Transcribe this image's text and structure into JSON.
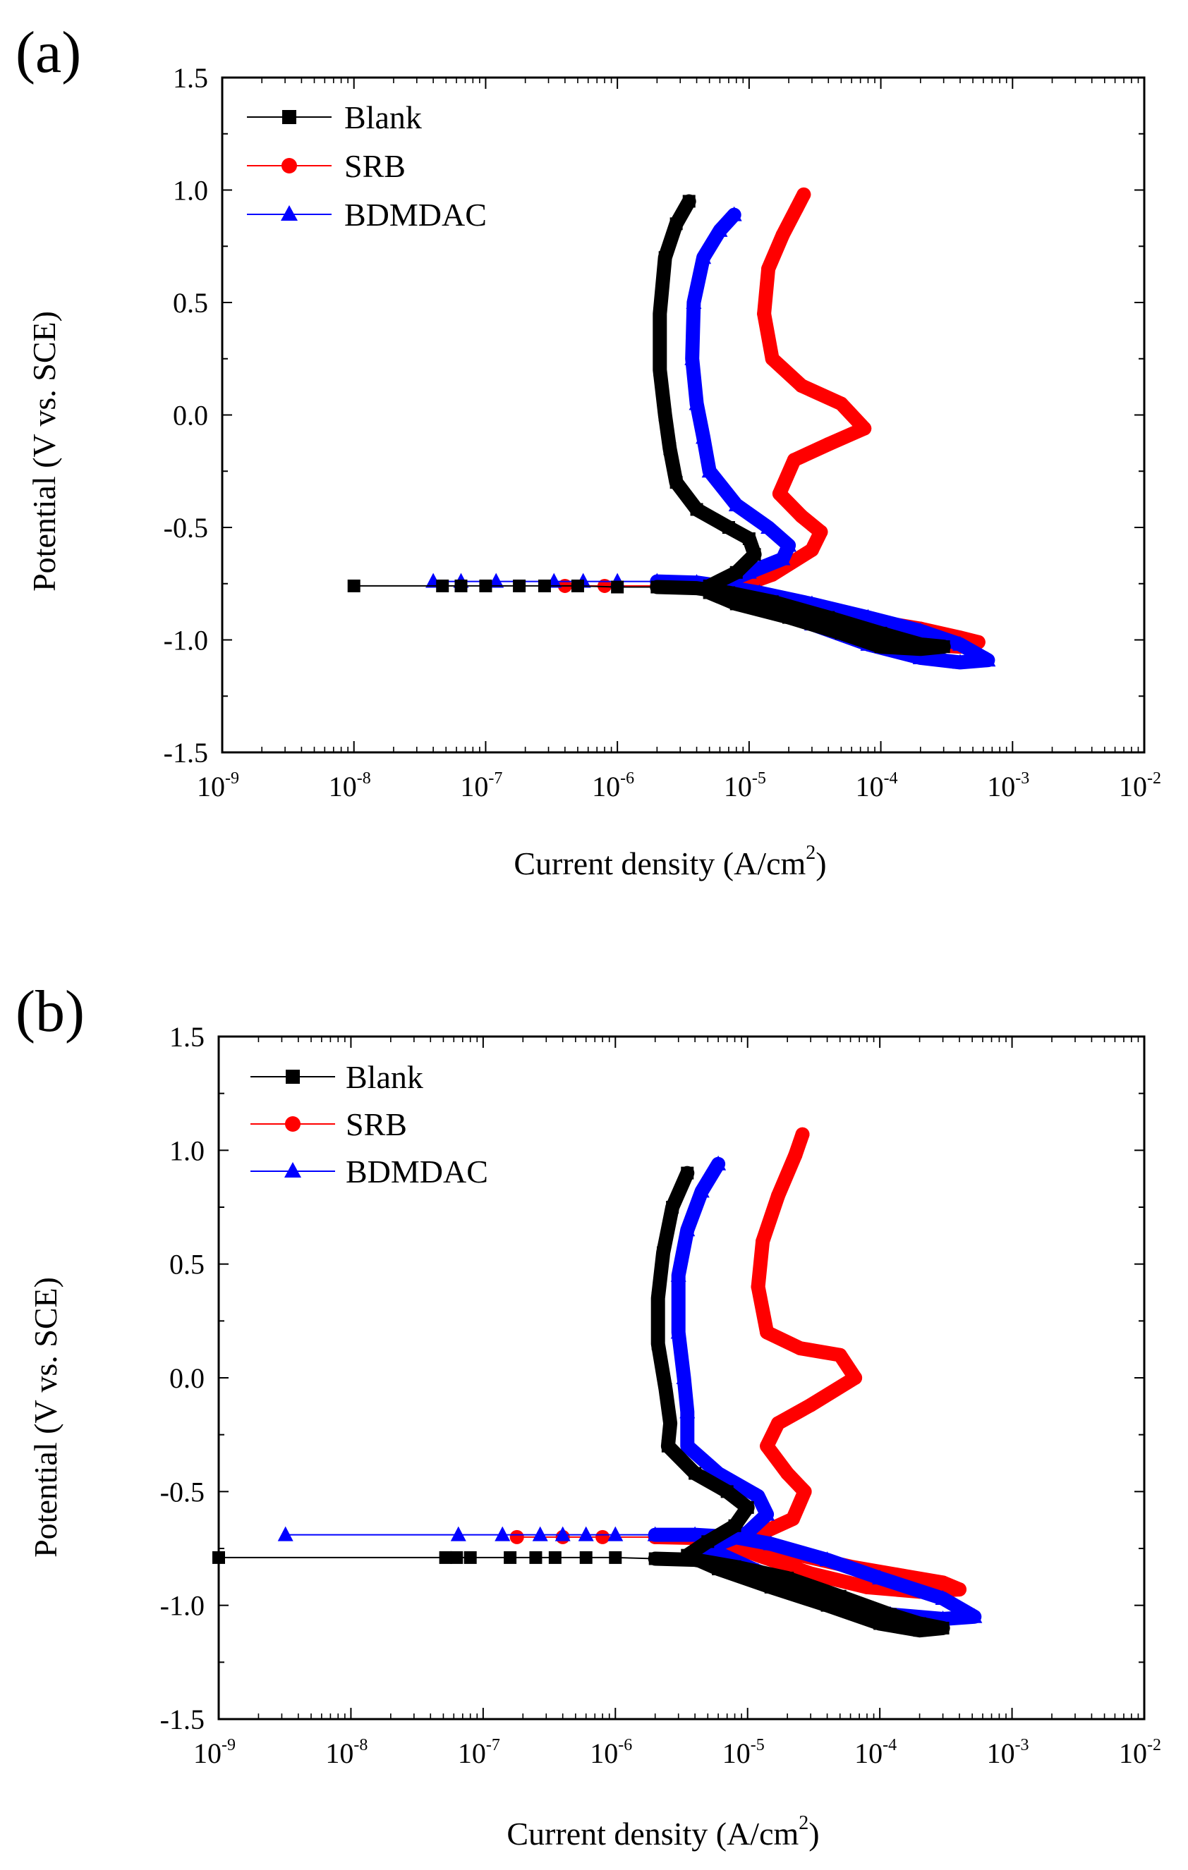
{
  "figure": {
    "panels": [
      "(a)",
      "(b)"
    ]
  },
  "colors": {
    "Blank": "#000000",
    "SRB": "#ff0000",
    "BDMDAC": "#0000ff"
  },
  "chart_data": [
    {
      "panel": "(a)",
      "type": "line",
      "xlabel": "Current density (A/cm",
      "xlabel_sup": "2",
      "xlabel_close": ")",
      "ylabel": "Potential (V vs. SCE)",
      "xscale": "log",
      "xlim": [
        1e-09,
        0.01
      ],
      "ylim": [
        -1.5,
        1.5
      ],
      "x_ticks": [
        {
          "exp": -9,
          "base": "10",
          "sup": "-9"
        },
        {
          "exp": -8,
          "base": "10",
          "sup": "-8"
        },
        {
          "exp": -7,
          "base": "10",
          "sup": "-7"
        },
        {
          "exp": -6,
          "base": "10",
          "sup": "-6"
        },
        {
          "exp": -5,
          "base": "10",
          "sup": "-5"
        },
        {
          "exp": -4,
          "base": "10",
          "sup": "-4"
        },
        {
          "exp": -3,
          "base": "10",
          "sup": "-3"
        },
        {
          "exp": -2,
          "base": "10",
          "sup": "-2"
        }
      ],
      "y_ticks": [
        {
          "v": 1.5,
          "label": "1.5"
        },
        {
          "v": 1.0,
          "label": "1.0"
        },
        {
          "v": 0.5,
          "label": "0.5"
        },
        {
          "v": 0.0,
          "label": "0.0"
        },
        {
          "v": -0.5,
          "label": "-0.5"
        },
        {
          "v": -1.0,
          "label": "-1.0"
        },
        {
          "v": -1.5,
          "label": "-1.5"
        }
      ],
      "legend_position": "top-left",
      "series": [
        {
          "name": "Blank",
          "marker": "square",
          "points": [
            [
              1e-08,
              -0.76
            ],
            [
              4.7e-08,
              -0.76
            ],
            [
              6.5e-08,
              -0.76
            ],
            [
              1e-07,
              -0.76
            ],
            [
              1.8e-07,
              -0.76
            ],
            [
              2.8e-07,
              -0.76
            ],
            [
              5e-07,
              -0.76
            ],
            [
              1e-06,
              -0.765
            ],
            [
              2e-06,
              -0.765
            ],
            [
              4e-06,
              -0.77
            ],
            [
              7e-06,
              -0.79
            ],
            [
              1.5e-05,
              -0.83
            ],
            [
              4e-05,
              -0.9
            ],
            [
              0.0001,
              -0.97
            ],
            [
              0.0002,
              -1.02
            ],
            [
              0.0003,
              -1.03
            ],
            [
              0.0002,
              -1.04
            ],
            [
              0.0001,
              -1.03
            ],
            [
              5e-05,
              -0.97
            ],
            [
              2e-05,
              -0.9
            ],
            [
              8e-06,
              -0.84
            ],
            [
              5e-06,
              -0.79
            ],
            [
              5e-06,
              -0.76
            ],
            [
              8e-06,
              -0.7
            ],
            [
              1.1e-05,
              -0.62
            ],
            [
              1e-05,
              -0.55
            ],
            [
              7e-06,
              -0.5
            ],
            [
              4e-06,
              -0.42
            ],
            [
              2.8e-06,
              -0.3
            ],
            [
              2.5e-06,
              -0.15
            ],
            [
              2.3e-06,
              0.0
            ],
            [
              2.1e-06,
              0.2
            ],
            [
              2.1e-06,
              0.45
            ],
            [
              2.3e-06,
              0.7
            ],
            [
              2.8e-06,
              0.85
            ],
            [
              3.5e-06,
              0.95
            ]
          ]
        },
        {
          "name": "SRB",
          "marker": "circle",
          "points": [
            [
              4e-07,
              -0.76
            ],
            [
              8e-07,
              -0.76
            ],
            [
              2e-06,
              -0.76
            ],
            [
              5e-06,
              -0.76
            ],
            [
              8e-06,
              -0.8
            ],
            [
              2e-05,
              -0.84
            ],
            [
              6e-05,
              -0.9
            ],
            [
              0.0002,
              -0.95
            ],
            [
              0.0004,
              -0.99
            ],
            [
              0.00055,
              -1.01
            ],
            [
              0.0004,
              -1.03
            ],
            [
              0.0002,
              -1.02
            ],
            [
              8e-05,
              -0.97
            ],
            [
              3e-05,
              -0.9
            ],
            [
              1.2e-05,
              -0.82
            ],
            [
              7e-06,
              -0.78
            ],
            [
              1.5e-05,
              -0.71
            ],
            [
              3e-05,
              -0.6
            ],
            [
              3.5e-05,
              -0.52
            ],
            [
              2.5e-05,
              -0.45
            ],
            [
              1.7e-05,
              -0.35
            ],
            [
              2.2e-05,
              -0.2
            ],
            [
              4e-05,
              -0.13
            ],
            [
              7.5e-05,
              -0.06
            ],
            [
              5e-05,
              0.05
            ],
            [
              2.5e-05,
              0.13
            ],
            [
              1.5e-05,
              0.25
            ],
            [
              1.3e-05,
              0.45
            ],
            [
              1.4e-05,
              0.65
            ],
            [
              1.8e-05,
              0.8
            ],
            [
              2.3e-05,
              0.92
            ],
            [
              2.6e-05,
              0.98
            ]
          ]
        },
        {
          "name": "BDMDAC",
          "marker": "triangle",
          "points": [
            [
              4e-08,
              -0.74
            ],
            [
              6.5e-08,
              -0.74
            ],
            [
              1.2e-07,
              -0.74
            ],
            [
              3.3e-07,
              -0.74
            ],
            [
              5.5e-07,
              -0.74
            ],
            [
              1e-06,
              -0.74
            ],
            [
              2e-06,
              -0.74
            ],
            [
              4e-06,
              -0.745
            ],
            [
              6e-06,
              -0.76
            ],
            [
              1.2e-05,
              -0.79
            ],
            [
              3e-05,
              -0.84
            ],
            [
              8e-05,
              -0.9
            ],
            [
              0.0002,
              -0.96
            ],
            [
              0.0004,
              -1.02
            ],
            [
              0.00065,
              -1.09
            ],
            [
              0.0004,
              -1.1
            ],
            [
              0.0002,
              -1.08
            ],
            [
              8e-05,
              -1.02
            ],
            [
              3e-05,
              -0.93
            ],
            [
              1e-05,
              -0.84
            ],
            [
              5e-06,
              -0.77
            ],
            [
              1e-05,
              -0.7
            ],
            [
              1.8e-05,
              -0.64
            ],
            [
              2e-05,
              -0.58
            ],
            [
              1.4e-05,
              -0.5
            ],
            [
              8e-06,
              -0.4
            ],
            [
              5e-06,
              -0.25
            ],
            [
              4.5e-06,
              -0.1
            ],
            [
              4e-06,
              0.05
            ],
            [
              3.7e-06,
              0.25
            ],
            [
              3.8e-06,
              0.5
            ],
            [
              4.5e-06,
              0.7
            ],
            [
              6e-06,
              0.82
            ],
            [
              7.7e-06,
              0.89
            ]
          ]
        }
      ]
    },
    {
      "panel": "(b)",
      "type": "line",
      "xlabel": "Current density (A/cm",
      "xlabel_sup": "2",
      "xlabel_close": ")",
      "ylabel": "Potential (V vs. SCE)",
      "xscale": "log",
      "xlim": [
        1e-09,
        0.01
      ],
      "ylim": [
        -1.5,
        1.5
      ],
      "x_ticks": [
        {
          "exp": -9,
          "base": "10",
          "sup": "-9"
        },
        {
          "exp": -8,
          "base": "10",
          "sup": "-8"
        },
        {
          "exp": -7,
          "base": "10",
          "sup": "-7"
        },
        {
          "exp": -6,
          "base": "10",
          "sup": "-6"
        },
        {
          "exp": -5,
          "base": "10",
          "sup": "-5"
        },
        {
          "exp": -4,
          "base": "10",
          "sup": "-4"
        },
        {
          "exp": -3,
          "base": "10",
          "sup": "-3"
        },
        {
          "exp": -2,
          "base": "10",
          "sup": "-2"
        }
      ],
      "y_ticks": [
        {
          "v": 1.5,
          "label": "1.5"
        },
        {
          "v": 1.0,
          "label": "1.0"
        },
        {
          "v": 0.5,
          "label": "0.5"
        },
        {
          "v": 0.0,
          "label": "0.0"
        },
        {
          "v": -0.5,
          "label": "-0.5"
        },
        {
          "v": -1.0,
          "label": "-1.0"
        },
        {
          "v": -1.5,
          "label": "-1.5"
        }
      ],
      "legend_position": "top-left",
      "series": [
        {
          "name": "Blank",
          "marker": "square",
          "points": [
            [
              1e-09,
              -0.79
            ],
            [
              5.2e-08,
              -0.79
            ],
            [
              6.3e-08,
              -0.79
            ],
            [
              8e-08,
              -0.79
            ],
            [
              1.6e-07,
              -0.79
            ],
            [
              2.5e-07,
              -0.79
            ],
            [
              3.5e-07,
              -0.79
            ],
            [
              6e-07,
              -0.79
            ],
            [
              1e-06,
              -0.79
            ],
            [
              2e-06,
              -0.795
            ],
            [
              4e-06,
              -0.8
            ],
            [
              8e-06,
              -0.83
            ],
            [
              2e-05,
              -0.88
            ],
            [
              5e-05,
              -0.96
            ],
            [
              0.00012,
              -1.04
            ],
            [
              0.0002,
              -1.08
            ],
            [
              0.0003,
              -1.1
            ],
            [
              0.0002,
              -1.11
            ],
            [
              0.0001,
              -1.08
            ],
            [
              4e-05,
              -1.0
            ],
            [
              1.5e-05,
              -0.92
            ],
            [
              6e-06,
              -0.84
            ],
            [
              3.5e-06,
              -0.78
            ],
            [
              5e-06,
              -0.72
            ],
            [
              8e-06,
              -0.65
            ],
            [
              1e-05,
              -0.57
            ],
            [
              7e-06,
              -0.5
            ],
            [
              4e-06,
              -0.42
            ],
            [
              2.5e-06,
              -0.3
            ],
            [
              2.6e-06,
              -0.2
            ],
            [
              2.4e-06,
              -0.05
            ],
            [
              2.1e-06,
              0.15
            ],
            [
              2.1e-06,
              0.35
            ],
            [
              2.3e-06,
              0.55
            ],
            [
              2.7e-06,
              0.75
            ],
            [
              3.5e-06,
              0.9
            ]
          ]
        },
        {
          "name": "SRB",
          "marker": "circle",
          "points": [
            [
              1.8e-07,
              -0.7
            ],
            [
              4e-07,
              -0.7
            ],
            [
              8e-07,
              -0.7
            ],
            [
              2e-06,
              -0.7
            ],
            [
              5e-06,
              -0.705
            ],
            [
              1e-05,
              -0.73
            ],
            [
              2.5e-05,
              -0.78
            ],
            [
              6e-05,
              -0.83
            ],
            [
              0.00015,
              -0.87
            ],
            [
              0.0003,
              -0.9
            ],
            [
              0.0004,
              -0.93
            ],
            [
              0.0002,
              -0.94
            ],
            [
              8e-05,
              -0.92
            ],
            [
              3e-05,
              -0.86
            ],
            [
              1.2e-05,
              -0.78
            ],
            [
              7e-06,
              -0.73
            ],
            [
              1.2e-05,
              -0.69
            ],
            [
              2.2e-05,
              -0.62
            ],
            [
              2.7e-05,
              -0.5
            ],
            [
              2e-05,
              -0.42
            ],
            [
              1.4e-05,
              -0.3
            ],
            [
              1.7e-05,
              -0.2
            ],
            [
              3e-05,
              -0.12
            ],
            [
              6.5e-05,
              0.0
            ],
            [
              5e-05,
              0.1
            ],
            [
              2.5e-05,
              0.13
            ],
            [
              1.4e-05,
              0.2
            ],
            [
              1.2e-05,
              0.4
            ],
            [
              1.3e-05,
              0.6
            ],
            [
              1.7e-05,
              0.8
            ],
            [
              2.3e-05,
              0.98
            ],
            [
              2.6e-05,
              1.07
            ]
          ]
        },
        {
          "name": "BDMDAC",
          "marker": "triangle",
          "points": [
            [
              3.2e-09,
              -0.69
            ],
            [
              6.5e-08,
              -0.69
            ],
            [
              1.4e-07,
              -0.69
            ],
            [
              2.7e-07,
              -0.69
            ],
            [
              4e-07,
              -0.69
            ],
            [
              6e-07,
              -0.69
            ],
            [
              1e-06,
              -0.69
            ],
            [
              2e-06,
              -0.69
            ],
            [
              4e-06,
              -0.69
            ],
            [
              8e-06,
              -0.7
            ],
            [
              1.5e-05,
              -0.73
            ],
            [
              4e-05,
              -0.8
            ],
            [
              0.0001,
              -0.88
            ],
            [
              0.0003,
              -0.97
            ],
            [
              0.00052,
              -1.05
            ],
            [
              0.0003,
              -1.06
            ],
            [
              0.00012,
              -1.04
            ],
            [
              4e-05,
              -0.96
            ],
            [
              1.2e-05,
              -0.85
            ],
            [
              5e-06,
              -0.75
            ],
            [
              1e-05,
              -0.68
            ],
            [
              1.4e-05,
              -0.6
            ],
            [
              1.2e-05,
              -0.52
            ],
            [
              6e-06,
              -0.42
            ],
            [
              3.5e-06,
              -0.3
            ],
            [
              3.5e-06,
              -0.15
            ],
            [
              3.3e-06,
              0.0
            ],
            [
              3e-06,
              0.2
            ],
            [
              3e-06,
              0.45
            ],
            [
              3.5e-06,
              0.65
            ],
            [
              4.5e-06,
              0.82
            ],
            [
              6e-06,
              0.94
            ]
          ]
        }
      ]
    }
  ]
}
